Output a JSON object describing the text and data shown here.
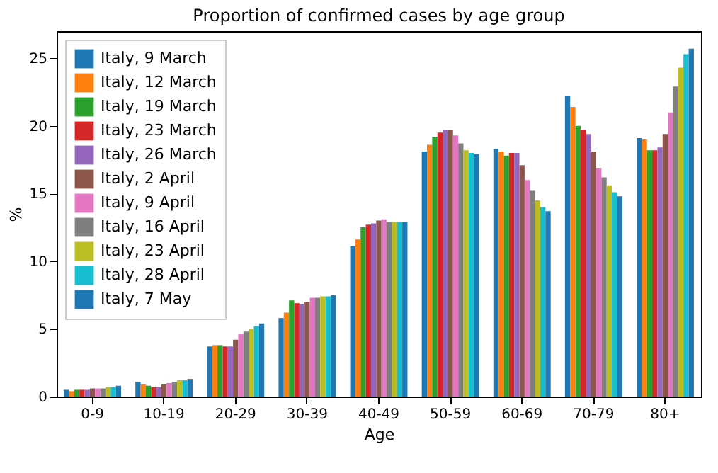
{
  "chart_data": {
    "type": "bar",
    "title": "Proportion of confirmed cases by age group",
    "xlabel": "Age",
    "ylabel": "%",
    "categories": [
      "0-9",
      "10-19",
      "20-29",
      "30-39",
      "40-49",
      "50-59",
      "60-69",
      "70-79",
      "80+"
    ],
    "ylim": [
      0,
      27
    ],
    "yticks": [
      0,
      5,
      10,
      15,
      20,
      25
    ],
    "grid": false,
    "legend": "top left",
    "series": [
      {
        "name": "Italy, 9 March",
        "color": "#1f77b4",
        "values": [
          0.5,
          1.1,
          3.7,
          5.8,
          11.1,
          18.1,
          18.3,
          22.2,
          19.1
        ]
      },
      {
        "name": "Italy, 12 March",
        "color": "#ff7f0e",
        "values": [
          0.4,
          0.9,
          3.8,
          6.2,
          11.6,
          18.6,
          18.1,
          21.4,
          19.0
        ]
      },
      {
        "name": "Italy, 19 March",
        "color": "#2ca02c",
        "values": [
          0.5,
          0.8,
          3.8,
          7.1,
          12.5,
          19.2,
          17.8,
          20.0,
          18.2
        ]
      },
      {
        "name": "Italy, 23 March",
        "color": "#d62728",
        "values": [
          0.5,
          0.7,
          3.7,
          6.9,
          12.7,
          19.5,
          18.0,
          19.7,
          18.2
        ]
      },
      {
        "name": "Italy, 26 March",
        "color": "#9467bd",
        "values": [
          0.5,
          0.7,
          3.7,
          6.8,
          12.8,
          19.7,
          18.0,
          19.4,
          18.4
        ]
      },
      {
        "name": "Italy, 2 April",
        "color": "#8c564b",
        "values": [
          0.6,
          0.9,
          4.2,
          7.0,
          13.0,
          19.7,
          17.1,
          18.1,
          19.4
        ]
      },
      {
        "name": "Italy, 9 April",
        "color": "#e377c2",
        "values": [
          0.6,
          1.0,
          4.6,
          7.3,
          13.1,
          19.3,
          16.0,
          16.9,
          21.0
        ]
      },
      {
        "name": "Italy, 16 April",
        "color": "#7f7f7f",
        "values": [
          0.6,
          1.1,
          4.8,
          7.3,
          12.9,
          18.7,
          15.2,
          16.2,
          22.9
        ]
      },
      {
        "name": "Italy, 23 April",
        "color": "#bcbd22",
        "values": [
          0.7,
          1.2,
          5.0,
          7.4,
          12.9,
          18.2,
          14.5,
          15.6,
          24.3
        ]
      },
      {
        "name": "Italy, 28 April",
        "color": "#17becf",
        "values": [
          0.7,
          1.2,
          5.2,
          7.4,
          12.9,
          18.0,
          14.0,
          15.1,
          25.3
        ]
      },
      {
        "name": "Italy, 7 May",
        "color": "#1f77b4",
        "values": [
          0.8,
          1.3,
          5.4,
          7.5,
          12.9,
          17.9,
          13.7,
          14.8,
          25.7
        ]
      }
    ]
  }
}
